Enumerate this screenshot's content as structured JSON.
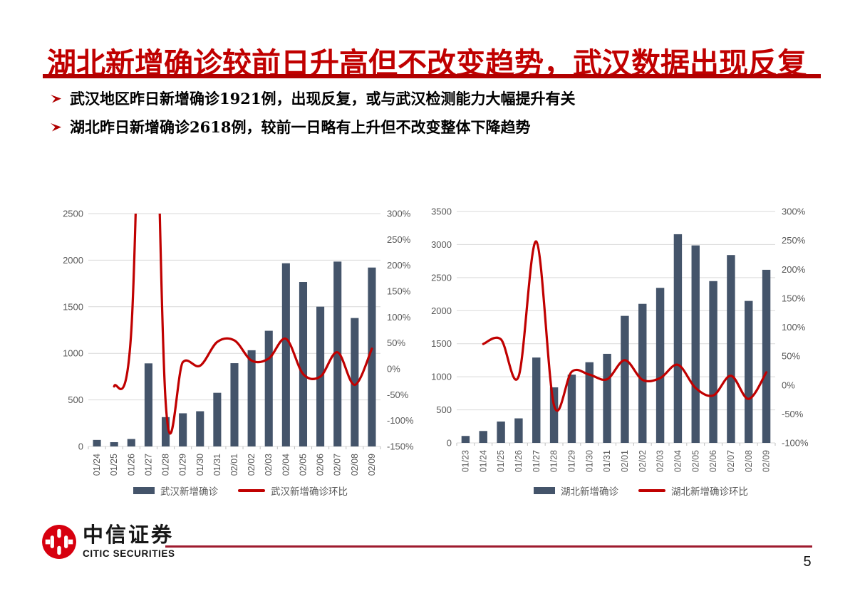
{
  "slide": {
    "title": "湖北新增确诊较前日升高但不改变趋势，武汉数据出现反复",
    "bullets": [
      "武汉地区昨日新增确诊1921例，出现反复，或与武汉检测能力大幅提升有关",
      "湖北昨日新增确诊2618例，较前一日略有上升但不改变整体下降趋势"
    ],
    "page_number": "5"
  },
  "footer": {
    "brand_cn": "中信证券",
    "brand_en": "CITIC SECURITIES"
  },
  "colors": {
    "titleRed": "#C00000",
    "ruleRed": "#B20000",
    "bulletArrow": "#B00000",
    "bar": "#44546A",
    "line": "#C00000",
    "grid": "#D9D9D9",
    "tick": "#BFBFBF",
    "axisText": "#595959",
    "footerRule": "#9E1B2E",
    "logoRed": "#D7000F"
  },
  "chart_data": [
    {
      "type": "bar",
      "title": "",
      "categories": [
        "01/24",
        "01/25",
        "01/26",
        "01/27",
        "01/28",
        "01/29",
        "01/30",
        "01/31",
        "02/01",
        "02/02",
        "02/03",
        "02/04",
        "02/05",
        "02/06",
        "02/07",
        "02/08",
        "02/09"
      ],
      "series": [
        {
          "name": "武汉新增确诊",
          "type": "bar",
          "axis": "left",
          "values": [
            70,
            46,
            80,
            892,
            315,
            356,
            378,
            576,
            894,
            1033,
            1242,
            1967,
            1766,
            1501,
            1985,
            1379,
            1921
          ]
        },
        {
          "name": "武汉新增确诊环比",
          "type": "line",
          "axis": "right",
          "unit": "percent",
          "values": [
            null,
            -34,
            74,
            1015,
            -65,
            13,
            6,
            52,
            55,
            16,
            20,
            58,
            -10,
            -15,
            32,
            -31,
            39
          ]
        }
      ],
      "left_axis": {
        "min": 0,
        "max": 2500,
        "step": 500
      },
      "right_axis": {
        "min": -150,
        "max": 300,
        "step": 50,
        "suffix": "%"
      },
      "grid": true,
      "legend_position": "bottom"
    },
    {
      "type": "bar",
      "title": "",
      "categories": [
        "01/23",
        "01/24",
        "01/25",
        "01/26",
        "01/27",
        "01/28",
        "01/29",
        "01/30",
        "01/31",
        "02/01",
        "02/02",
        "02/03",
        "02/04",
        "02/05",
        "02/06",
        "02/07",
        "02/08",
        "02/09"
      ],
      "series": [
        {
          "name": "湖北新增确诊",
          "type": "bar",
          "axis": "left",
          "values": [
            105,
            180,
            323,
            371,
            1291,
            840,
            1032,
            1220,
            1347,
            1921,
            2103,
            2345,
            3156,
            2987,
            2447,
            2841,
            2147,
            2618
          ]
        },
        {
          "name": "湖北新增确诊环比",
          "type": "line",
          "axis": "right",
          "unit": "percent",
          "values": [
            null,
            71,
            79,
            15,
            248,
            -35,
            23,
            18,
            10,
            43,
            9,
            12,
            35,
            -5,
            -18,
            16,
            -24,
            22
          ]
        }
      ],
      "left_axis": {
        "min": 0,
        "max": 3500,
        "step": 500
      },
      "right_axis": {
        "min": -100,
        "max": 300,
        "step": 50,
        "suffix": "%"
      },
      "grid": true,
      "legend_position": "bottom"
    }
  ]
}
